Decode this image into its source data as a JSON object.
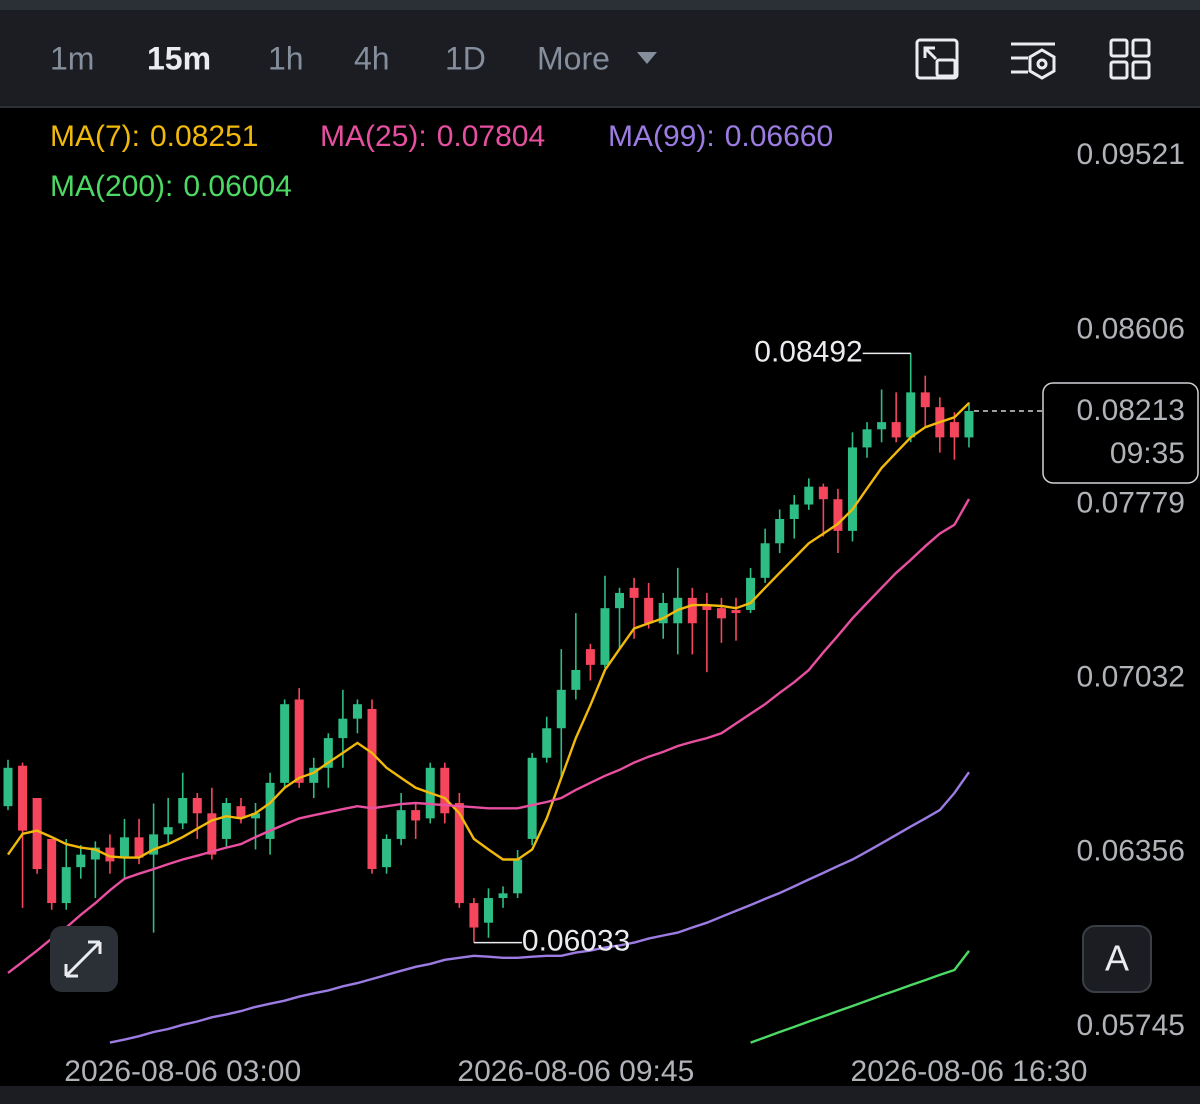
{
  "toolbar": {
    "intervals": [
      "1m",
      "15m",
      "1h",
      "4h",
      "1D",
      "More"
    ],
    "active": "15m"
  },
  "auto_scale_button": "A",
  "chart_data": {
    "type": "candlestick",
    "log_scale": true,
    "up_color": "#2ebd85",
    "down_color": "#f6465d",
    "categories": [
      null,
      null,
      null,
      null,
      null,
      null,
      null,
      null,
      null,
      null,
      null,
      null,
      "2026-08-06 03:00",
      null,
      null,
      null,
      null,
      null,
      null,
      null,
      null,
      null,
      null,
      null,
      null,
      null,
      null,
      null,
      null,
      null,
      null,
      null,
      null,
      null,
      null,
      null,
      null,
      null,
      null,
      "2026-08-06 09:45",
      null,
      null,
      null,
      null,
      null,
      null,
      null,
      null,
      null,
      null,
      null,
      null,
      null,
      null,
      null,
      null,
      null,
      null,
      null,
      null,
      null,
      null,
      null,
      null,
      null,
      null,
      "2026-08-06 16:30"
    ],
    "open": [
      0.0653,
      0.06685,
      0.06561,
      0.06407,
      0.06173,
      0.06303,
      0.06331,
      0.06375,
      0.06338,
      0.06413,
      0.06349,
      0.06424,
      0.06465,
      0.06561,
      0.06503,
      0.06407,
      0.0653,
      0.06484,
      0.06407,
      0.06619,
      0.06947,
      0.06619,
      0.06677,
      0.06793,
      0.0687,
      0.06909,
      0.06303,
      0.06407,
      0.06515,
      0.06484,
      0.06677,
      0.06542,
      0.06173,
      0.06103,
      0.06191,
      0.06208,
      0.06407,
      0.06716,
      0.06832,
      0.06986,
      0.07153,
      0.07088,
      0.07325,
      0.07412,
      0.07369,
      0.07261,
      0.07261,
      0.07369,
      0.07334,
      0.07325,
      0.07317,
      0.07317,
      0.07455,
      0.07606,
      0.07714,
      0.07779,
      0.0786,
      0.07803,
      0.07661,
      0.08041,
      0.08126,
      0.0816,
      0.08088,
      0.08302,
      0.08231,
      0.0816,
      0.08088
    ],
    "high": [
      0.06708,
      0.06697,
      0.06561,
      0.06407,
      0.06407,
      0.06384,
      0.06398,
      0.06424,
      0.06482,
      0.06482,
      0.0654,
      0.06561,
      0.06658,
      0.0658,
      0.066,
      0.06561,
      0.06561,
      0.06542,
      0.06658,
      0.06947,
      0.06993,
      0.06716,
      0.06812,
      0.06986,
      0.06947,
      0.06947,
      0.06424,
      0.0658,
      0.06542,
      0.06697,
      0.06697,
      0.0658,
      0.06191,
      0.06226,
      0.06233,
      0.06366,
      0.06735,
      0.06878,
      0.07153,
      0.07304,
      0.07175,
      0.07464,
      0.07412,
      0.07455,
      0.07433,
      0.0739,
      0.07498,
      0.07412,
      0.0739,
      0.07369,
      0.07369,
      0.07498,
      0.07671,
      0.07757,
      0.07822,
      0.07898,
      0.07874,
      0.0785,
      0.08112,
      0.0816,
      0.08316,
      0.08302,
      0.08492,
      0.08383,
      0.08278,
      0.08207,
      0.08255
    ],
    "low": [
      0.06515,
      0.06156,
      0.06279,
      0.06149,
      0.06149,
      0.06261,
      0.06191,
      0.06279,
      0.06261,
      0.06314,
      0.06068,
      0.06384,
      0.06444,
      0.06407,
      0.06331,
      0.06375,
      0.06465,
      0.06368,
      0.06349,
      0.066,
      0.066,
      0.06561,
      0.066,
      0.06677,
      0.06812,
      0.06279,
      0.06279,
      0.06384,
      0.06407,
      0.06465,
      0.06465,
      0.06156,
      0.06033,
      0.0605,
      0.06156,
      0.06191,
      0.06384,
      0.06697,
      0.06638,
      0.06947,
      0.07024,
      0.07075,
      0.07153,
      0.07196,
      0.07239,
      0.07196,
      0.07131,
      0.07131,
      0.07058,
      0.07179,
      0.07188,
      0.07304,
      0.07433,
      0.07563,
      0.07627,
      0.07755,
      0.07636,
      0.07563,
      0.07614,
      0.07993,
      0.08065,
      0.08065,
      0.08065,
      0.08136,
      0.08017,
      0.07984,
      0.08041
    ],
    "close": [
      0.06677,
      0.06438,
      0.06296,
      0.06173,
      0.06303,
      0.06349,
      0.06375,
      0.06324,
      0.06413,
      0.06338,
      0.06424,
      0.06451,
      0.06561,
      0.06503,
      0.06349,
      0.06542,
      0.06484,
      0.06503,
      0.06619,
      0.06928,
      0.06619,
      0.06677,
      0.06793,
      0.0687,
      0.06928,
      0.06296,
      0.06407,
      0.06515,
      0.06476,
      0.06677,
      0.06503,
      0.06173,
      0.06086,
      0.06191,
      0.06208,
      0.06331,
      0.06716,
      0.06832,
      0.06986,
      0.07067,
      0.07088,
      0.07325,
      0.0739,
      0.07369,
      0.07261,
      0.07347,
      0.07369,
      0.07261,
      0.07317,
      0.07282,
      0.07304,
      0.07455,
      0.07606,
      0.07714,
      0.07779,
      0.0786,
      0.07803,
      0.07661,
      0.08041,
      0.08126,
      0.0816,
      0.08088,
      0.08302,
      0.08231,
      0.08088,
      0.08088,
      0.08213
    ],
    "series": [
      {
        "name": "MA(7):",
        "color": "#f0b90b",
        "values": [
          0.06349,
          0.06426,
          0.06438,
          0.06414,
          0.06388,
          0.06375,
          0.06368,
          0.06342,
          0.06338,
          0.06338,
          0.06368,
          0.06388,
          0.06414,
          0.06445,
          0.06476,
          0.06492,
          0.06484,
          0.06503,
          0.06542,
          0.066,
          0.06638,
          0.06658,
          0.06697,
          0.06735,
          0.06774,
          0.06735,
          0.06677,
          0.06638,
          0.066,
          0.0658,
          0.06561,
          0.06503,
          0.06407,
          0.06368,
          0.06331,
          0.06331,
          0.06368,
          0.06484,
          0.06638,
          0.06793,
          0.06924,
          0.07067,
          0.07153,
          0.07239,
          0.07261,
          0.07282,
          0.07317,
          0.07338,
          0.07338,
          0.07334,
          0.07325,
          0.07347,
          0.07412,
          0.07477,
          0.07541,
          0.07606,
          0.07649,
          0.07692,
          0.07757,
          0.07851,
          0.07946,
          0.08017,
          0.08088,
          0.08136,
          0.0816,
          0.08183,
          0.08251
        ]
      },
      {
        "name": "MA(25):",
        "color": "#e84fa0",
        "values": [
          0.05928,
          0.05966,
          0.06005,
          0.06047,
          0.06086,
          0.06131,
          0.06173,
          0.06219,
          0.06261,
          0.06279,
          0.06296,
          0.06314,
          0.06331,
          0.06345,
          0.0636,
          0.06375,
          0.06388,
          0.06414,
          0.06438,
          0.06461,
          0.06484,
          0.06496,
          0.06507,
          0.06519,
          0.0653,
          0.06522,
          0.0653,
          0.06538,
          0.06542,
          0.06538,
          0.06534,
          0.0653,
          0.06526,
          0.06522,
          0.06522,
          0.06522,
          0.06534,
          0.06546,
          0.06561,
          0.06592,
          0.06619,
          0.06646,
          0.06669,
          0.06697,
          0.0672,
          0.06739,
          0.06762,
          0.06778,
          0.06793,
          0.06812,
          0.06851,
          0.0689,
          0.06928,
          0.06974,
          0.07017,
          0.07067,
          0.0714,
          0.07209,
          0.07282,
          0.07347,
          0.07412,
          0.07477,
          0.07533,
          0.07593,
          0.07649,
          0.07688,
          0.07804
        ]
      },
      {
        "name": "MA(99):",
        "color": "#9c7ce3",
        "values": [
          null,
          null,
          null,
          null,
          null,
          null,
          null,
          0.05693,
          0.05703,
          0.05714,
          0.05728,
          0.05738,
          0.05752,
          0.05763,
          0.05777,
          0.05787,
          0.05798,
          0.05812,
          0.05823,
          0.05833,
          0.05847,
          0.05858,
          0.05868,
          0.05882,
          0.05893,
          0.05907,
          0.05921,
          0.05935,
          0.05949,
          0.05959,
          0.05973,
          0.0598,
          0.05987,
          0.05984,
          0.0598,
          0.0598,
          0.05984,
          0.05987,
          0.05987,
          0.05998,
          0.06005,
          0.06016,
          0.06023,
          0.06033,
          0.06047,
          0.06058,
          0.06068,
          0.06086,
          0.06103,
          0.06124,
          0.06145,
          0.06166,
          0.06188,
          0.06209,
          0.06233,
          0.06258,
          0.06282,
          0.06307,
          0.06331,
          0.0636,
          0.06391,
          0.06422,
          0.06453,
          0.06484,
          0.06515,
          0.0658,
          0.0666
        ],
        "value_labels": [
          null,
          null,
          null,
          null,
          null,
          null,
          null,
          null,
          null,
          null,
          null,
          null,
          null,
          null,
          null,
          null,
          null,
          null,
          null,
          null,
          null,
          null,
          null,
          null,
          null,
          null,
          null,
          null,
          null,
          null,
          null,
          null,
          null,
          null,
          null,
          null,
          null,
          null,
          null,
          null,
          null,
          null,
          null,
          null,
          null,
          null,
          null,
          null,
          null,
          null,
          null,
          null,
          null,
          null,
          null,
          null,
          null,
          null,
          null,
          null,
          null,
          null,
          null,
          null,
          null,
          null,
          "0.06660"
        ]
      },
      {
        "name": "MA(200):",
        "color": "#4cd964",
        "values": [
          null,
          null,
          null,
          null,
          null,
          null,
          null,
          null,
          null,
          null,
          null,
          null,
          null,
          null,
          null,
          null,
          null,
          null,
          null,
          null,
          null,
          null,
          null,
          null,
          null,
          null,
          null,
          null,
          null,
          null,
          null,
          null,
          null,
          null,
          null,
          null,
          null,
          null,
          null,
          null,
          null,
          null,
          null,
          null,
          null,
          null,
          null,
          null,
          null,
          null,
          null,
          0.05693,
          0.0571,
          0.05728,
          0.05745,
          0.05763,
          0.0578,
          0.05798,
          0.05815,
          0.05833,
          0.05851,
          0.05868,
          0.05886,
          0.05903,
          0.05921,
          0.05938,
          0.06004
        ]
      }
    ],
    "ylim": [
      0.05685,
      0.0978
    ],
    "yticks": [
      0.09521,
      0.08606,
      0.07779,
      0.07032,
      0.06356,
      0.05745
    ],
    "countdown": "09:35"
  }
}
